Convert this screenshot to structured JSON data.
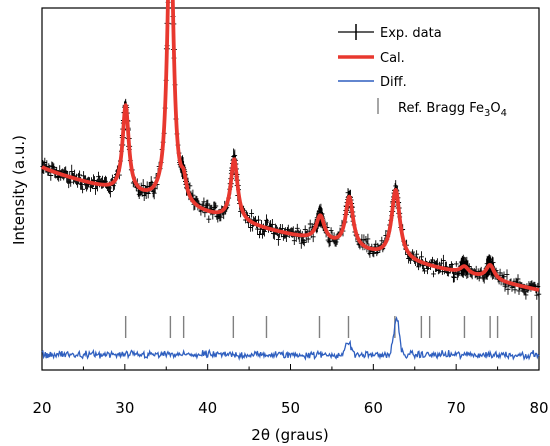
{
  "chart_data": {
    "type": "line",
    "title": "",
    "xlabel": "2θ (graus)",
    "ylabel": "Intensity (a.u.)",
    "xlim": [
      20,
      80
    ],
    "ylim": [
      0,
      1
    ],
    "x_ticks": [
      20,
      30,
      40,
      50,
      60,
      70,
      80
    ],
    "y_ticks_labeled": false,
    "grid": false,
    "legend_position": "top-right",
    "background": {
      "start": 0.56,
      "end": 0.22
    },
    "peaks": [
      {
        "x": 30.1,
        "height": 0.24,
        "width": 0.45
      },
      {
        "x": 35.5,
        "height": 0.8,
        "width": 0.45
      },
      {
        "x": 37.1,
        "height": 0.05,
        "width": 0.4
      },
      {
        "x": 43.2,
        "height": 0.17,
        "width": 0.5
      },
      {
        "x": 53.6,
        "height": 0.07,
        "width": 0.6
      },
      {
        "x": 57.1,
        "height": 0.14,
        "width": 0.55
      },
      {
        "x": 62.7,
        "height": 0.19,
        "width": 0.6
      },
      {
        "x": 71.0,
        "height": 0.02,
        "width": 0.6
      },
      {
        "x": 74.1,
        "height": 0.04,
        "width": 0.6
      }
    ],
    "bragg_positions": [
      30.1,
      35.5,
      37.1,
      43.1,
      47.1,
      53.5,
      57.0,
      62.6,
      65.8,
      66.8,
      71.0,
      74.1,
      75.0,
      79.1
    ],
    "diff_features": [
      {
        "x": 57.0,
        "amplitude": 0.035
      },
      {
        "x": 62.8,
        "amplitude": 0.1
      }
    ],
    "series": [
      {
        "name": "Exp. data",
        "style": "black-cross",
        "color": "#000000"
      },
      {
        "name": "Cal.",
        "style": "line",
        "color": "#e8382f"
      },
      {
        "name": "Diff.",
        "style": "line",
        "color": "#2f5fbf"
      },
      {
        "name": "Ref. Bragg Fe3O4",
        "style": "tick",
        "color": "#808080"
      }
    ],
    "legend": {
      "exp": "Exp. data",
      "cal": "Cal.",
      "diff": "Diff.",
      "bragg_prefix": "Ref. Bragg Fe",
      "bragg_sub1": "3",
      "bragg_mid": "O",
      "bragg_sub2": "4"
    }
  }
}
